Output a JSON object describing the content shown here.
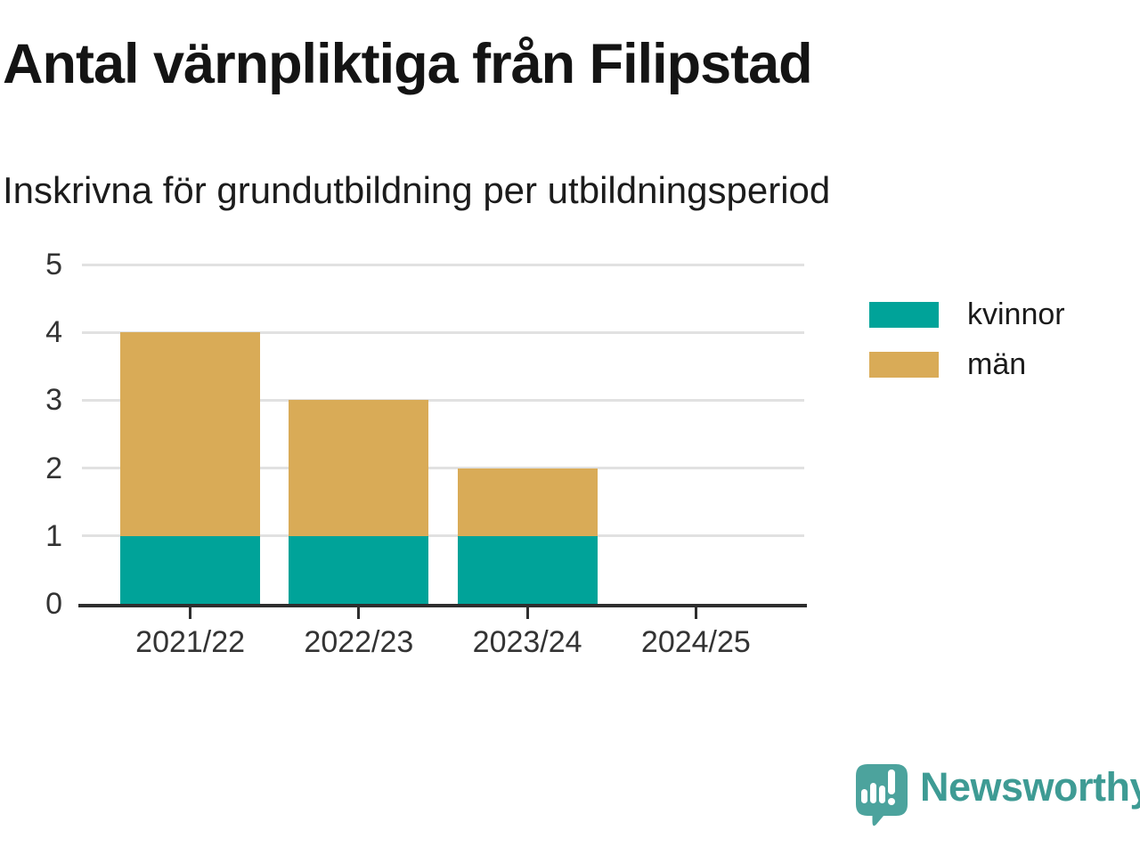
{
  "title": "Antal värnpliktiga från Filipstad",
  "subtitle": "Inskrivna för grundutbildning per utbildningsperiod",
  "chart_data": {
    "type": "bar",
    "stacked": true,
    "title": "Antal värnpliktiga från Filipstad",
    "subtitle": "Inskrivna för grundutbildning per utbildningsperiod",
    "categories": [
      "2021/22",
      "2022/23",
      "2023/24",
      "2024/25"
    ],
    "series": [
      {
        "name": "kvinnor",
        "color": "#00A399",
        "values": [
          1,
          1,
          1,
          0
        ]
      },
      {
        "name": "män",
        "color": "#D9AB57",
        "values": [
          3,
          2,
          1,
          0
        ]
      }
    ],
    "totals": [
      4,
      3,
      2,
      0
    ],
    "xlabel": "",
    "ylabel": "",
    "ylim": [
      0,
      5
    ],
    "yticks": [
      0,
      1,
      2,
      3,
      4,
      5
    ],
    "grid": true,
    "legend_position": "right"
  },
  "colors": {
    "grid": "#E1E1E1",
    "axis": "#2E2E2E",
    "tick_text": "#333333",
    "title_text": "#141414",
    "brand_teal": "#3E9B94",
    "logo_bubble": "#4CA39D"
  },
  "footer": {
    "brand": "Newsworthy"
  }
}
